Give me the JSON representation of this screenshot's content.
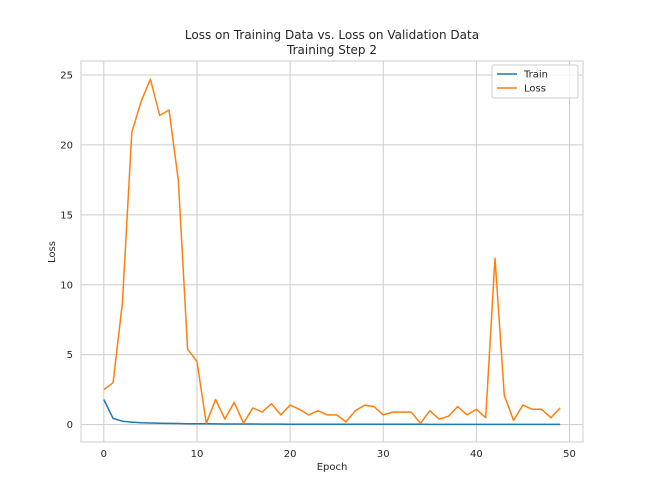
{
  "chart_data": {
    "type": "line",
    "title": "Loss on Training Data vs. Loss on Validation Data",
    "subtitle": "Training Step 2",
    "xlabel": "Epoch",
    "ylabel": "Loss",
    "xlim": [
      -2.45,
      51.45
    ],
    "ylim": [
      -1.24,
      26.0
    ],
    "xticks": [
      0,
      10,
      20,
      30,
      40,
      50
    ],
    "yticks": [
      0,
      5,
      10,
      15,
      20,
      25
    ],
    "grid": true,
    "legend_position": "top-right",
    "series": [
      {
        "name": "Train",
        "color": "#1f77b4",
        "x": [
          0,
          1,
          2,
          3,
          4,
          5,
          6,
          7,
          8,
          9,
          10,
          11,
          12,
          13,
          14,
          15,
          16,
          17,
          18,
          19,
          20,
          21,
          22,
          23,
          24,
          25,
          26,
          27,
          28,
          29,
          30,
          31,
          32,
          33,
          34,
          35,
          36,
          37,
          38,
          39,
          40,
          41,
          42,
          43,
          44,
          45,
          46,
          47,
          48,
          49
        ],
        "values": [
          1.8,
          0.45,
          0.25,
          0.18,
          0.14,
          0.12,
          0.1,
          0.09,
          0.08,
          0.07,
          0.065,
          0.06,
          0.055,
          0.05,
          0.05,
          0.045,
          0.045,
          0.04,
          0.04,
          0.04,
          0.035,
          0.035,
          0.035,
          0.03,
          0.03,
          0.03,
          0.03,
          0.03,
          0.03,
          0.025,
          0.025,
          0.025,
          0.025,
          0.025,
          0.025,
          0.02,
          0.02,
          0.02,
          0.02,
          0.02,
          0.02,
          0.02,
          0.02,
          0.02,
          0.02,
          0.02,
          0.02,
          0.02,
          0.02,
          0.02
        ]
      },
      {
        "name": "Loss",
        "color": "#ff7f0e",
        "x": [
          0,
          1,
          2,
          3,
          4,
          5,
          6,
          7,
          8,
          9,
          10,
          11,
          12,
          13,
          14,
          15,
          16,
          17,
          18,
          19,
          20,
          21,
          22,
          23,
          24,
          25,
          26,
          27,
          28,
          29,
          30,
          31,
          32,
          33,
          34,
          35,
          36,
          37,
          38,
          39,
          40,
          41,
          42,
          43,
          44,
          45,
          46,
          47,
          48,
          49
        ],
        "values": [
          2.5,
          3.0,
          8.7,
          20.9,
          23.1,
          24.7,
          22.1,
          22.5,
          17.5,
          5.4,
          4.5,
          0.1,
          1.8,
          0.4,
          1.6,
          0.1,
          1.2,
          0.9,
          1.5,
          0.7,
          1.4,
          1.1,
          0.7,
          1.0,
          0.7,
          0.7,
          0.2,
          1.0,
          1.4,
          1.3,
          0.7,
          0.9,
          0.9,
          0.9,
          0.1,
          1.0,
          0.4,
          0.6,
          1.3,
          0.7,
          1.1,
          0.5,
          11.9,
          2.1,
          0.3,
          1.4,
          1.1,
          1.1,
          0.5,
          1.2
        ]
      }
    ]
  }
}
